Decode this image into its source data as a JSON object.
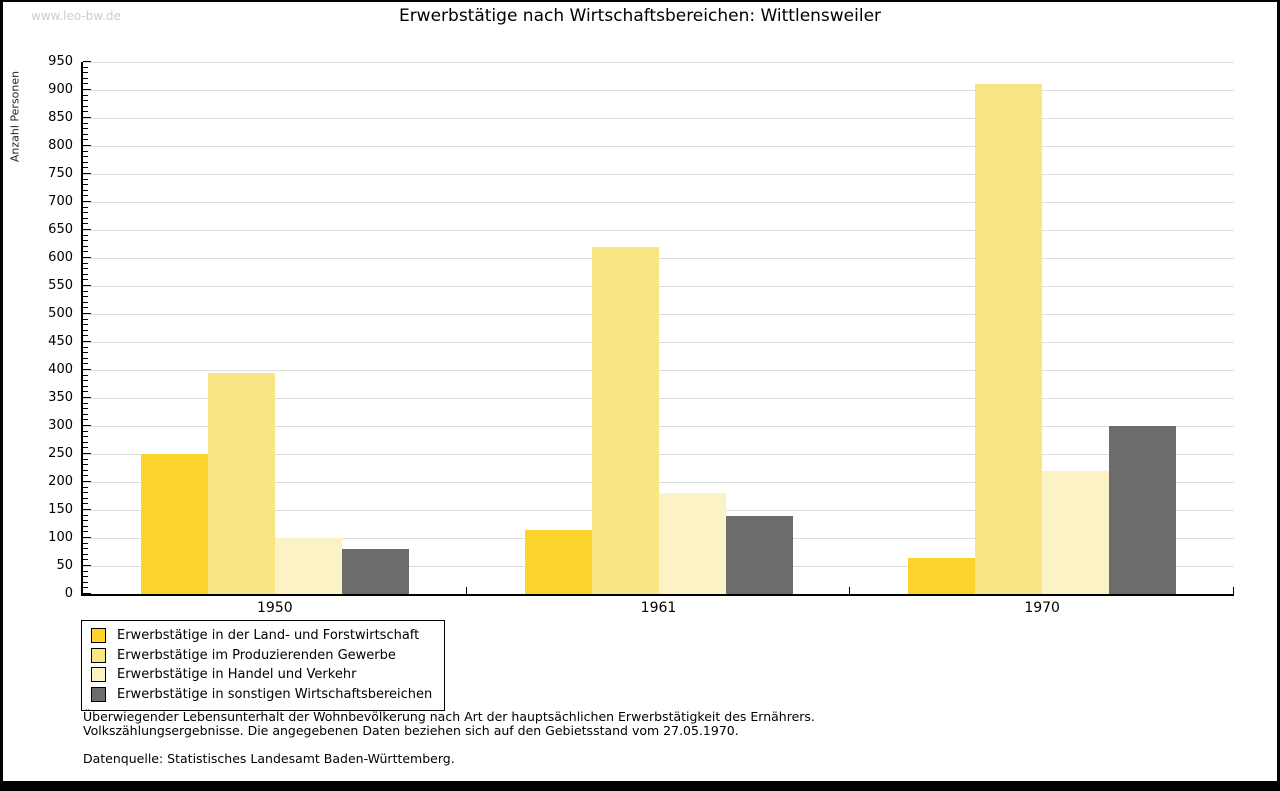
{
  "watermark": "www.leo-bw.de",
  "chart_data": {
    "type": "bar",
    "title": "Erwerbstätige nach Wirtschaftsbereichen: Wittlensweiler",
    "ylabel": "Anzahl Personen",
    "xlabel": "",
    "categories": [
      "1950",
      "1961",
      "1970"
    ],
    "series": [
      {
        "name": "Erwerbstätige in der Land- und Forstwirtschaft",
        "color": "#FCD32D",
        "values": [
          250,
          115,
          65
        ]
      },
      {
        "name": "Erwerbstätige im Produzierenden Gewerbe",
        "color": "#FAE584",
        "values": [
          395,
          620,
          910
        ]
      },
      {
        "name": "Erwerbstätige in Handel und Verkehr",
        "color": "#FBF2C5",
        "values": [
          100,
          180,
          220
        ]
      },
      {
        "name": "Erwerbstätige in sonstigen Wirtschaftsbereichen",
        "color": "#6C6C6C",
        "values": [
          80,
          140,
          300
        ]
      }
    ],
    "ylim": [
      0,
      950
    ],
    "ytick_step": 50,
    "ytick_minor_step": 10,
    "grid": true,
    "grid_color": "#DDDDDD",
    "axis_color": "#000000",
    "legend_position": "bottom-left"
  },
  "footnotes": {
    "line1": "Überwiegender Lebensunterhalt der Wohnbevölkerung nach Art der hauptsächlichen Erwerbstätigkeit des Ernährers.",
    "line2": "Volkszählungsergebnisse. Die angegebenen Daten beziehen sich auf den Gebietsstand vom 27.05.1970.",
    "source": "Datenquelle: Statistisches Landesamt Baden-Württemberg."
  }
}
